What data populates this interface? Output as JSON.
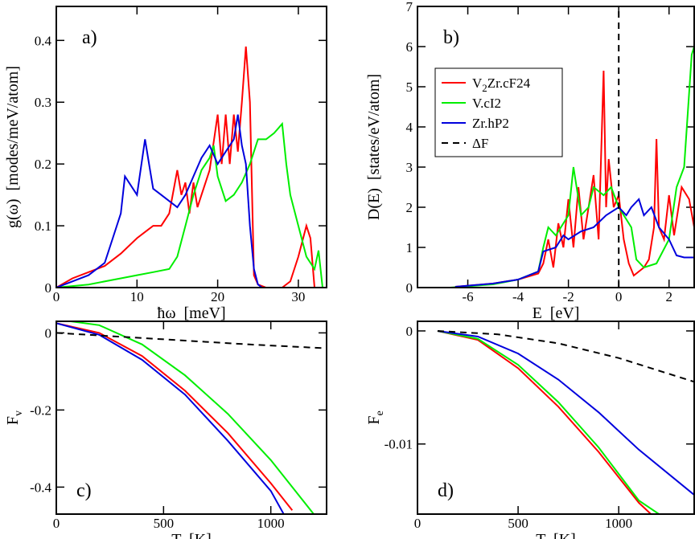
{
  "chart_data": [
    {
      "type": "line",
      "panel_label": "a)",
      "panel_label_corner": "upper left",
      "xlabel": "ħω  [meV]",
      "ylabel": "g(ω)  [modes/meV/atom]",
      "xlim": [
        0,
        33.5
      ],
      "xticks": [
        0,
        10,
        20,
        30
      ],
      "ylim": [
        0,
        0.455
      ],
      "yticks": [
        0,
        0.1,
        0.2,
        0.3,
        0.4
      ],
      "series": [
        {
          "color": "#ff0000",
          "x": [
            0,
            2,
            4,
            6,
            8,
            10,
            11,
            12,
            13,
            14,
            15,
            15.5,
            16,
            16.5,
            17,
            17.5,
            18,
            19,
            20,
            20.5,
            21,
            21.5,
            22,
            22.5,
            23,
            23.5,
            24,
            24.5,
            25,
            26,
            27,
            28,
            29,
            30,
            31,
            31.5,
            32,
            32.5
          ],
          "values": [
            0,
            0.015,
            0.025,
            0.035,
            0.055,
            0.08,
            0.09,
            0.1,
            0.1,
            0.12,
            0.19,
            0.15,
            0.17,
            0.12,
            0.17,
            0.13,
            0.15,
            0.19,
            0.28,
            0.2,
            0.28,
            0.2,
            0.28,
            0.22,
            0.3,
            0.39,
            0.3,
            0.02,
            0.005,
            0,
            0,
            0,
            0.01,
            0.05,
            0.1,
            0.08,
            0,
            0
          ]
        },
        {
          "color": "#00ee00",
          "x": [
            0,
            4,
            8,
            10,
            12,
            14,
            15,
            16,
            17,
            18,
            19,
            19.5,
            20,
            21,
            22,
            23,
            24,
            25,
            26,
            27,
            28,
            28.5,
            29,
            30,
            31,
            32,
            32.5,
            33
          ],
          "values": [
            0,
            0.005,
            0.015,
            0.02,
            0.025,
            0.03,
            0.05,
            0.1,
            0.15,
            0.19,
            0.21,
            0.23,
            0.18,
            0.14,
            0.15,
            0.17,
            0.2,
            0.24,
            0.24,
            0.25,
            0.265,
            0.2,
            0.15,
            0.1,
            0.05,
            0.03,
            0.06,
            0
          ]
        },
        {
          "color": "#0000dd",
          "x": [
            0,
            2,
            4,
            6,
            7,
            8,
            8.5,
            9,
            10,
            11,
            11.5,
            12,
            13,
            14,
            15,
            16,
            17,
            18,
            19,
            20,
            21,
            22,
            22.5,
            23,
            23.5,
            24,
            24.5,
            25,
            25.5
          ],
          "values": [
            0,
            0.01,
            0.02,
            0.04,
            0.08,
            0.12,
            0.18,
            0.17,
            0.15,
            0.24,
            0.2,
            0.16,
            0.15,
            0.14,
            0.13,
            0.15,
            0.18,
            0.21,
            0.23,
            0.2,
            0.22,
            0.24,
            0.28,
            0.23,
            0.2,
            0.1,
            0.03,
            0.005,
            0
          ]
        }
      ]
    },
    {
      "type": "line",
      "panel_label": "b)",
      "panel_label_corner": "upper left",
      "legend": "upper left",
      "xlabel": "E  [eV]",
      "ylabel": "D(E)  [states/eV/atom]",
      "xlim": [
        -8,
        3
      ],
      "xticks": [
        -6,
        -4,
        -2,
        0,
        2
      ],
      "ylim": [
        0,
        7
      ],
      "yticks": [
        0,
        1,
        2,
        3,
        4,
        5,
        6,
        7
      ],
      "series": [
        {
          "name": "V2Zr.cF24",
          "color": "#ff0000",
          "x": [
            -6.5,
            -5,
            -4,
            -3.2,
            -3,
            -2.8,
            -2.6,
            -2.4,
            -2.2,
            -2,
            -1.8,
            -1.6,
            -1.4,
            -1.2,
            -1,
            -0.8,
            -0.6,
            -0.5,
            -0.4,
            -0.2,
            0,
            0.2,
            0.4,
            0.6,
            0.8,
            1,
            1.2,
            1.4,
            1.5,
            1.6,
            1.8,
            2,
            2.2,
            2.5,
            2.8,
            3
          ],
          "values": [
            0.02,
            0.1,
            0.2,
            0.35,
            0.6,
            1.2,
            0.5,
            1.6,
            1,
            2.2,
            1,
            2.5,
            1.2,
            2,
            2.8,
            1.2,
            5.4,
            2,
            3.2,
            2,
            2.3,
            1.2,
            0.6,
            0.3,
            0.4,
            0.5,
            0.7,
            1.5,
            3.7,
            1.5,
            1.2,
            2.3,
            1.3,
            2.5,
            2.2,
            1.5
          ]
        },
        {
          "name": "V.cI2",
          "color": "#00ee00",
          "x": [
            -6.7,
            -5,
            -4,
            -3.2,
            -3,
            -2.8,
            -2.5,
            -2.2,
            -2,
            -1.8,
            -1.5,
            -1.2,
            -1,
            -0.6,
            -0.3,
            0,
            0.3,
            0.5,
            0.7,
            1,
            1.5,
            2,
            2.3,
            2.6,
            2.9,
            3
          ],
          "values": [
            0,
            0.08,
            0.2,
            0.4,
            1,
            1.5,
            1.3,
            1.6,
            1.8,
            3,
            1.8,
            2,
            2.5,
            2.3,
            2.5,
            2,
            1.7,
            1.5,
            0.7,
            0.5,
            0.6,
            1.2,
            2.5,
            3,
            5.8,
            6
          ]
        },
        {
          "name": "Zr.hP2",
          "color": "#0000dd",
          "x": [
            -6.5,
            -5,
            -4,
            -3.2,
            -3,
            -2.5,
            -2.2,
            -2,
            -1.5,
            -1,
            -0.5,
            0,
            0.3,
            0.5,
            0.8,
            1,
            1.3,
            1.6,
            2,
            2.3,
            2.6,
            3
          ],
          "values": [
            0.02,
            0.1,
            0.2,
            0.4,
            0.9,
            1,
            1.3,
            1.2,
            1.4,
            1.5,
            1.8,
            2,
            1.8,
            2,
            2.2,
            1.8,
            2,
            1.5,
            1.2,
            0.8,
            0.75,
            0.75
          ]
        },
        {
          "name": "ΔF",
          "color": "#000000",
          "dash": true,
          "x": [
            0,
            0
          ],
          "values": [
            0,
            7
          ]
        }
      ]
    },
    {
      "type": "line",
      "panel_label": "c)",
      "panel_label_corner": "lower left",
      "xlabel": "T  [K]",
      "ylabel": {
        "text": "F",
        "sub": "v"
      },
      "xlim": [
        0,
        1260
      ],
      "xticks": [
        0,
        500,
        1000
      ],
      "ylim": [
        -0.47,
        0.03
      ],
      "yticks": [
        0,
        -0.2,
        -0.4
      ],
      "series": [
        {
          "color": "#ff0000",
          "x": [
            0,
            200,
            400,
            600,
            800,
            1000,
            1100
          ],
          "values": [
            0.025,
            0,
            -0.06,
            -0.15,
            -0.26,
            -0.39,
            -0.46
          ]
        },
        {
          "color": "#00ee00",
          "x": [
            0,
            200,
            400,
            600,
            800,
            1000,
            1200
          ],
          "values": [
            0.035,
            0.02,
            -0.03,
            -0.11,
            -0.21,
            -0.33,
            -0.47
          ]
        },
        {
          "color": "#0000dd",
          "x": [
            0,
            200,
            400,
            600,
            800,
            1000,
            1060
          ],
          "values": [
            0.025,
            -0.005,
            -0.07,
            -0.16,
            -0.28,
            -0.41,
            -0.47
          ]
        },
        {
          "color": "#000000",
          "dash": true,
          "x": [
            0,
            300,
            600,
            900,
            1260
          ],
          "values": [
            0,
            -0.01,
            -0.02,
            -0.03,
            -0.04
          ]
        }
      ]
    },
    {
      "type": "line",
      "panel_label": "d)",
      "panel_label_corner": "lower left",
      "xlabel": "T  [K]",
      "ylabel": {
        "text": "F",
        "sub": "e"
      },
      "xlim": [
        0,
        1375
      ],
      "xticks": [
        0,
        500,
        1000
      ],
      "ylim": [
        -0.0162,
        0.00085
      ],
      "yticks": [
        0,
        -0.01
      ],
      "series": [
        {
          "color": "#ff0000",
          "x": [
            100,
            300,
            500,
            700,
            900,
            1100,
            1160
          ],
          "values": [
            0,
            -0.0008,
            -0.0033,
            -0.0067,
            -0.0107,
            -0.0152,
            -0.0162
          ]
        },
        {
          "color": "#00ee00",
          "x": [
            100,
            300,
            500,
            700,
            900,
            1100,
            1200
          ],
          "values": [
            0,
            -0.0007,
            -0.003,
            -0.0063,
            -0.0103,
            -0.015,
            -0.0162
          ]
        },
        {
          "color": "#0000dd",
          "x": [
            100,
            300,
            500,
            700,
            900,
            1100,
            1375
          ],
          "values": [
            0,
            -0.0005,
            -0.002,
            -0.0043,
            -0.0072,
            -0.0105,
            -0.0145
          ]
        },
        {
          "color": "#000000",
          "dash": true,
          "x": [
            100,
            400,
            700,
            1000,
            1375
          ],
          "values": [
            0,
            -0.0003,
            -0.0011,
            -0.0024,
            -0.0045
          ]
        }
      ]
    }
  ]
}
